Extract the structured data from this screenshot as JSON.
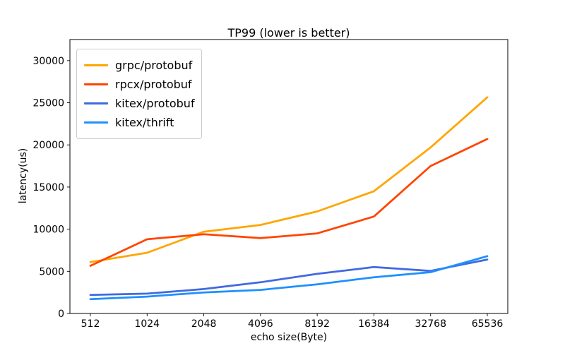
{
  "chart_data": {
    "type": "line",
    "title": "TP99 (lower is better)",
    "xlabel": "echo size(Byte)",
    "ylabel": "latency(us)",
    "categories": [
      "512",
      "1024",
      "2048",
      "4096",
      "8192",
      "16384",
      "32768",
      "65536"
    ],
    "yticks": [
      0,
      5000,
      10000,
      15000,
      20000,
      25000,
      30000
    ],
    "ylim": [
      0,
      32500
    ],
    "grid": false,
    "legend_position": "upper-left",
    "series": [
      {
        "name": "grpc/protobuf",
        "color": "#FFA500",
        "values": [
          6100,
          7200,
          9700,
          10500,
          12100,
          14500,
          19700,
          25650
        ]
      },
      {
        "name": "rpcx/protobuf",
        "color": "#FF4500",
        "values": [
          5650,
          8800,
          9400,
          8950,
          9500,
          11500,
          17500,
          20700
        ]
      },
      {
        "name": "kitex/protobuf",
        "color": "#4169E1",
        "values": [
          2200,
          2350,
          2900,
          3700,
          4700,
          5500,
          5050,
          6400
        ]
      },
      {
        "name": "kitex/thrift",
        "color": "#1E90FF",
        "values": [
          1700,
          2000,
          2500,
          2800,
          3450,
          4300,
          4900,
          6800
        ]
      }
    ]
  }
}
